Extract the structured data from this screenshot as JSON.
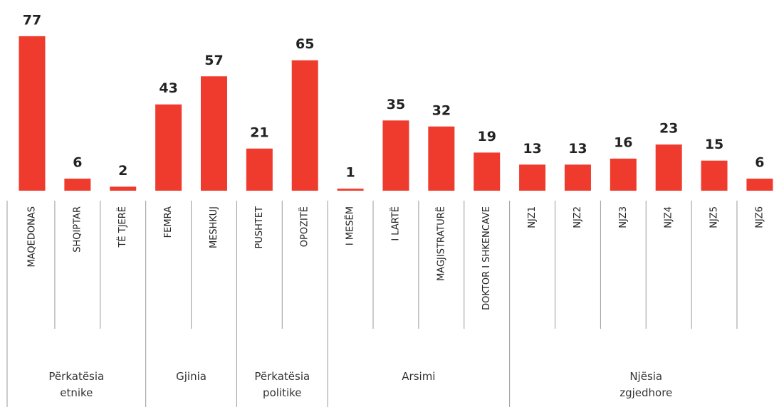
{
  "chart_data": {
    "type": "bar",
    "color": "#ee3b2e",
    "groups": [
      {
        "name": "Përkatësia etnike",
        "categories": [
          "MAQEDONAS",
          "SHQIPTAR",
          "TË TJERË"
        ],
        "values": [
          77,
          6,
          2
        ]
      },
      {
        "name": "Gjinia",
        "categories": [
          "FEMRA",
          "MESHKUJ"
        ],
        "values": [
          43,
          57
        ]
      },
      {
        "name": "Përkatësia politike",
        "categories": [
          "PUSHTET",
          "OPOZITË"
        ],
        "values": [
          21,
          65
        ]
      },
      {
        "name": "Arsimi",
        "categories": [
          "I MESËM",
          "I LARTË",
          "MAGJISTRATURË",
          "DOKTOR I SHKENCAVE"
        ],
        "values": [
          1,
          35,
          32,
          19
        ]
      },
      {
        "name": "Njësia zgjedhore",
        "categories": [
          "NJZ1",
          "NJZ2",
          "NJZ3",
          "NJZ4",
          "NJZ5",
          "NJZ6"
        ],
        "values": [
          13,
          13,
          16,
          23,
          15,
          6
        ]
      }
    ]
  }
}
